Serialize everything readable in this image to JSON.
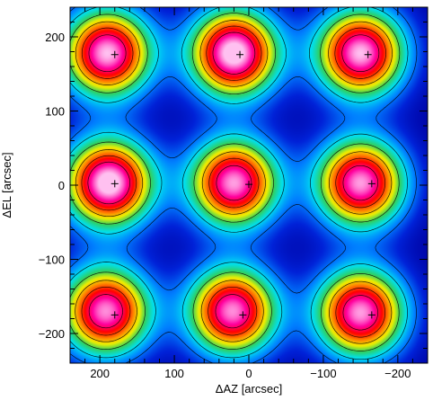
{
  "chart_data": {
    "type": "heatmap",
    "title": "",
    "xlabel": "ΔAZ [arcsec]",
    "ylabel": "ΔEL [arcsec]",
    "xlim": [
      240,
      -240
    ],
    "ylim": [
      -240,
      240
    ],
    "x_ticks": [
      200,
      100,
      0,
      -100,
      -200
    ],
    "y_ticks": [
      200,
      100,
      0,
      -100,
      -200
    ],
    "x_tick_labels": [
      "200",
      "100",
      "0",
      "−100",
      "−200"
    ],
    "y_tick_labels": [
      "200",
      "100",
      "0",
      "−100",
      "−200"
    ],
    "colormap": [
      "#0000a0",
      "#0022d8",
      "#0080ff",
      "#00e0f0",
      "#30d060",
      "#f0f000",
      "#ff8000",
      "#ff0000",
      "#ff00a0",
      "#ffc0f0"
    ],
    "contour_levels": [
      0.2,
      0.32,
      0.46,
      0.6,
      0.72,
      0.84
    ],
    "sources": [
      {
        "x": 190,
        "y": 178,
        "peak": 1.0
      },
      {
        "x": 20,
        "y": 178,
        "peak": 1.05
      },
      {
        "x": -150,
        "y": 178,
        "peak": 1.0
      },
      {
        "x": 188,
        "y": 3,
        "peak": 1.05
      },
      {
        "x": 20,
        "y": 3,
        "peak": 0.98
      },
      {
        "x": -150,
        "y": 3,
        "peak": 0.98
      },
      {
        "x": 192,
        "y": -170,
        "peak": 0.97
      },
      {
        "x": 22,
        "y": -170,
        "peak": 0.97
      },
      {
        "x": -150,
        "y": -172,
        "peak": 0.98
      }
    ],
    "reference_marks": [
      {
        "x": 180,
        "y": 176
      },
      {
        "x": 12,
        "y": 176
      },
      {
        "x": -160,
        "y": 176
      },
      {
        "x": 180,
        "y": 2
      },
      {
        "x": 0,
        "y": 1
      },
      {
        "x": -165,
        "y": 2
      },
      {
        "x": 180,
        "y": -175
      },
      {
        "x": 8,
        "y": -175
      },
      {
        "x": -165,
        "y": -175
      }
    ]
  }
}
